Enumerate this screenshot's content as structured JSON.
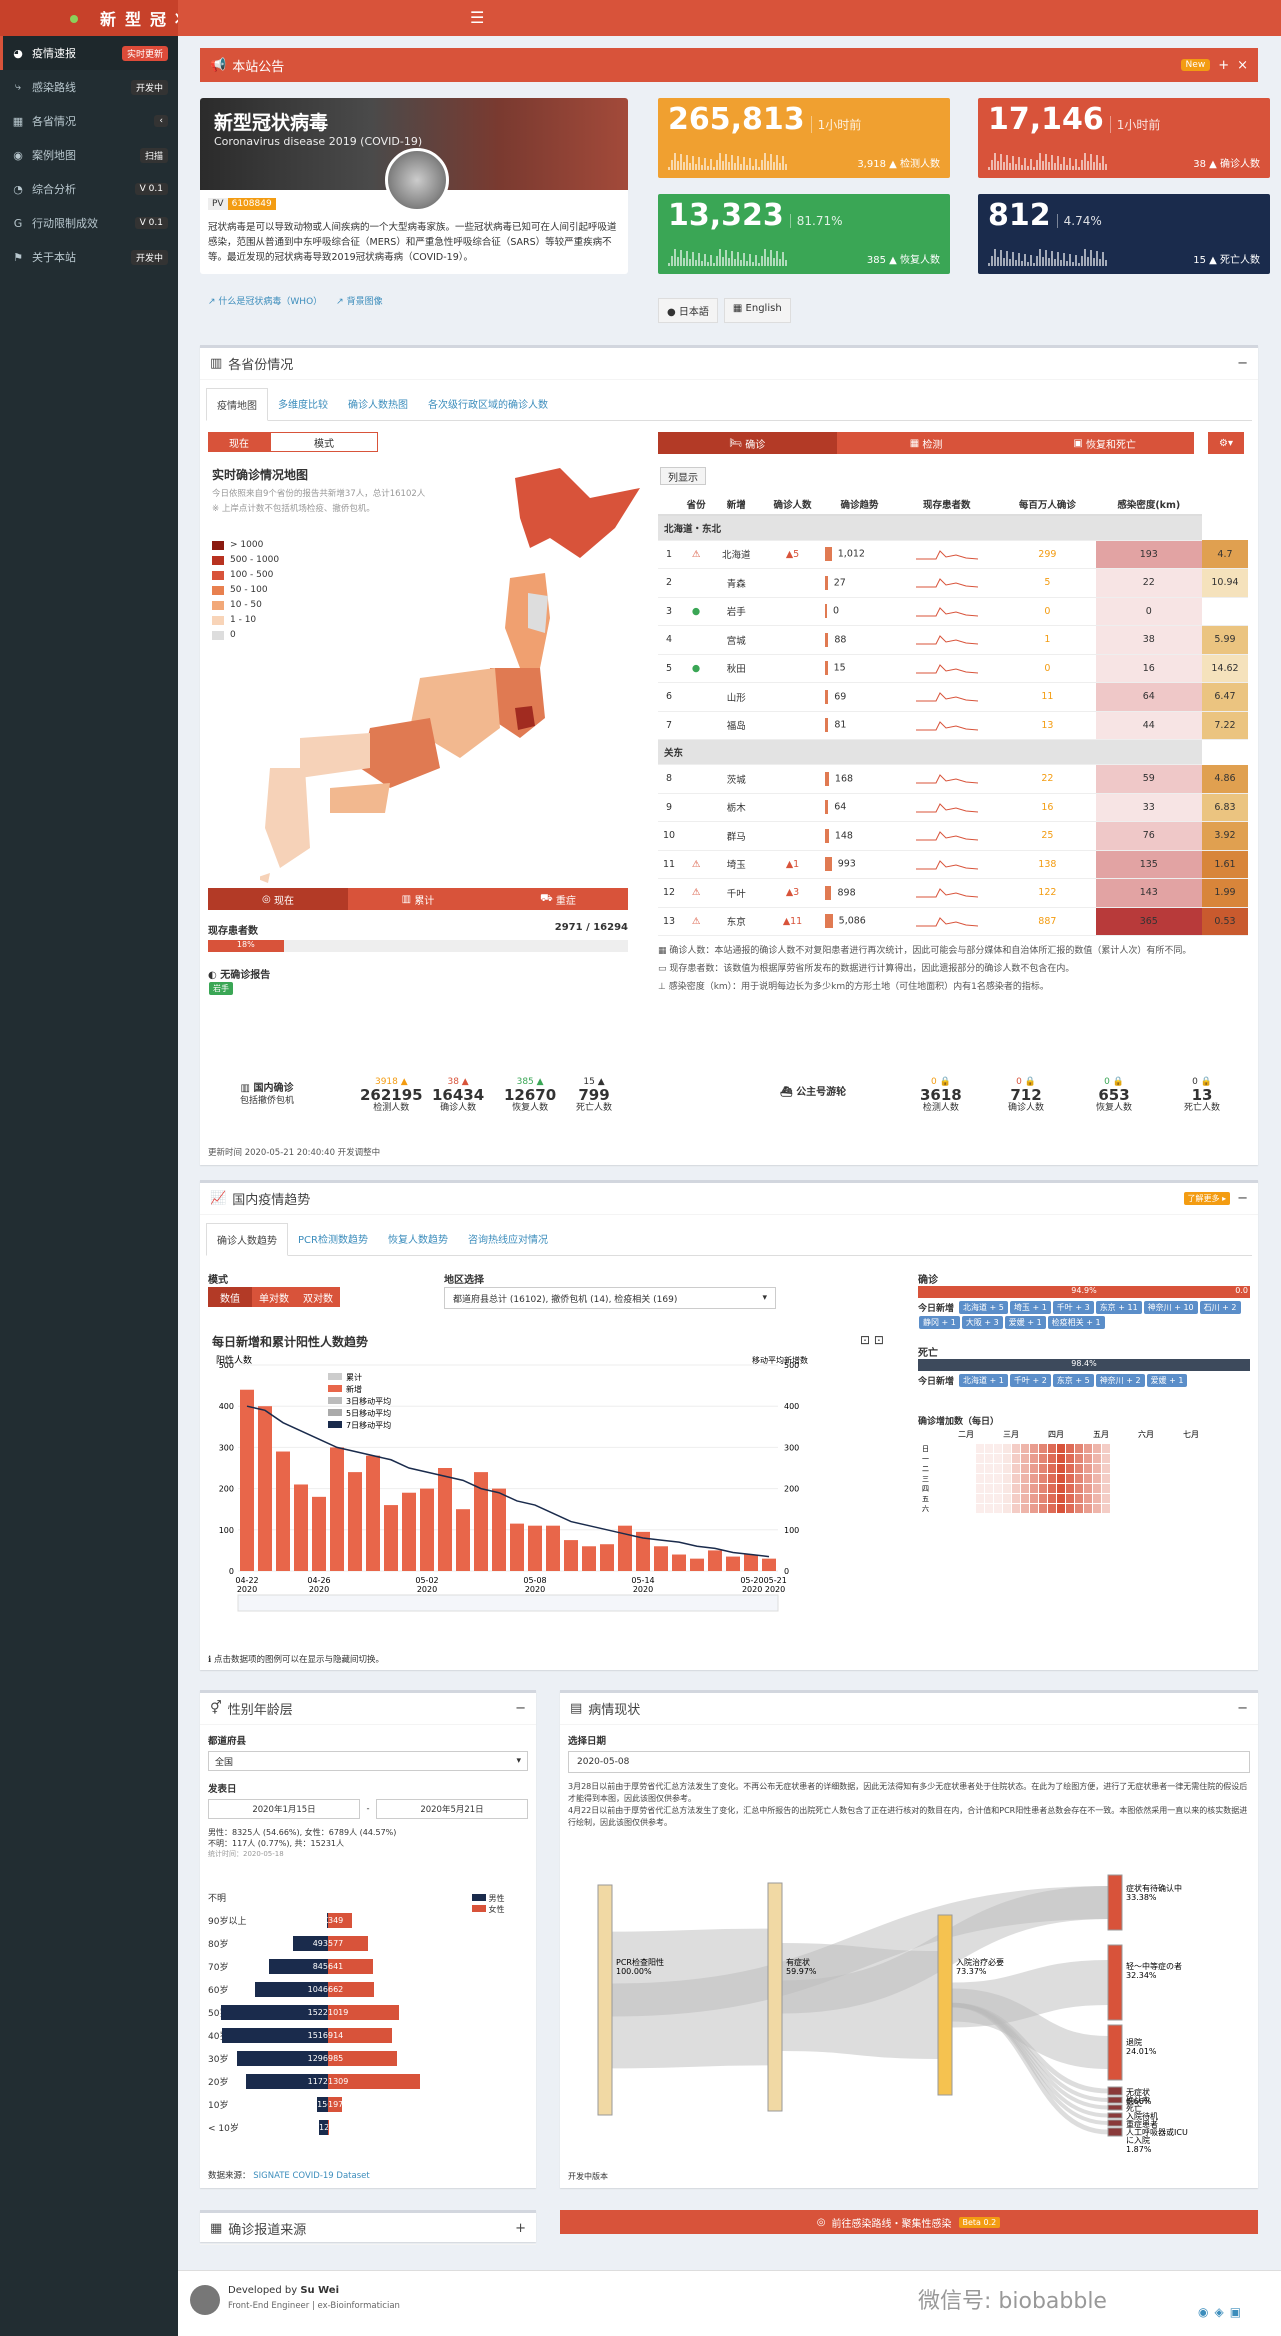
{
  "app": {
    "title": "新型冠状病毒疫情速报",
    "menu_icon": "hamburger-icon"
  },
  "sidebar": {
    "items": [
      {
        "label": "疫情速报",
        "badge": "实时更新",
        "icon": "dashboard-icon",
        "badge_color": "#dd4b39"
      },
      {
        "label": "感染路线",
        "badge": "开发中",
        "icon": "route-icon"
      },
      {
        "label": "各省情况",
        "badge": "‹",
        "icon": "map-icon"
      },
      {
        "label": "案例地图",
        "badge": "扫描",
        "icon": "location-icon"
      },
      {
        "label": "综合分析",
        "badge": "V 0.1",
        "icon": "chart-icon"
      },
      {
        "label": "行动限制成效",
        "badge": "V 0.1",
        "icon": "google-icon"
      },
      {
        "label": "关于本站",
        "badge": "开发中",
        "icon": "info-icon"
      }
    ]
  },
  "notice": {
    "title": "本站公告",
    "badge": "New"
  },
  "hero": {
    "title": "新型冠状病毒",
    "subtitle": "Coronavirus disease 2019 (COVID-19)",
    "pv_label": "PV",
    "pv_value": "6108849",
    "desc": "冠状病毒是可以导致动物或人间疾病的一个大型病毒家族。一些冠状病毒已知可在人间引起呼吸道感染，范围从普通到中东呼吸综合征（MERS）和严重急性呼吸综合征（SARS）等较严重疾病不等。最近发现的冠状病毒导致2019冠状病毒病（COVID-19）。",
    "link1": "什么是冠状病毒（WHO）",
    "link2": "背景图像"
  },
  "stats": [
    {
      "value": "265,813",
      "pct": "1小时前",
      "sub": "3,918 ▲ 检测人数",
      "color": "#f0a030"
    },
    {
      "value": "17,146",
      "pct": "1小时前",
      "sub": "38 ▲ 确诊人数",
      "color": "#d8533a"
    },
    {
      "value": "13,323",
      "pct": "81.71%",
      "sub": "385 ▲ 恢复人数",
      "color": "#3aa655"
    },
    {
      "value": "812",
      "pct": "4.74%",
      "sub": "15 ▲ 死亡人数",
      "color": "#1a2b4c"
    }
  ],
  "lang": {
    "ja": "日本語",
    "en": "English"
  },
  "province": {
    "title": "各省份情况",
    "tabs": [
      "疫情地图",
      "多维度比较",
      "确诊人数热图",
      "各次级行政区域的确诊人数"
    ],
    "mode_btns": [
      "现在",
      "模式"
    ],
    "map_title": "实时确诊情况地图",
    "map_sub1": "今日依照来自9个省份的报告共新增37人，总计16102人",
    "map_sub2": "※ 上岸点计数不包括机场检疫、撤侨包机。",
    "legend": [
      "> 1000",
      "500 - 1000",
      "100 - 500",
      "50 - 100",
      "10 - 50",
      "1 - 10",
      "0"
    ],
    "map_tabs": [
      "现在",
      "累计",
      "重症"
    ],
    "current_label": "现存患者数",
    "current_value": "2971 / 16294",
    "current_pct": "18%",
    "no_report_label": "无确诊报告",
    "no_report_badge": "岩手",
    "table_tabs": [
      "确诊",
      "检测",
      "恢复和死亡"
    ],
    "toggle": "列显示",
    "headers": [
      "省份",
      "新增",
      "确诊人数",
      "确诊趋势",
      "现存患者数",
      "每百万人确诊",
      "感染密度(km)"
    ],
    "groups": [
      "北海道・东北",
      "关东"
    ],
    "rows": [
      {
        "no": "1",
        "name": "北海道",
        "new": "5",
        "conf": "1,012",
        "cur": "299",
        "pm": "193",
        "den": "4.7"
      },
      {
        "no": "2",
        "name": "青森",
        "new": "",
        "conf": "27",
        "cur": "5",
        "pm": "22",
        "den": "10.94"
      },
      {
        "no": "3",
        "name": "岩手",
        "new": "",
        "conf": "0",
        "cur": "0",
        "pm": "0",
        "den": ""
      },
      {
        "no": "4",
        "name": "宫城",
        "new": "",
        "conf": "88",
        "cur": "1",
        "pm": "38",
        "den": "5.99"
      },
      {
        "no": "5",
        "name": "秋田",
        "new": "",
        "conf": "15",
        "cur": "0",
        "pm": "16",
        "den": "14.62"
      },
      {
        "no": "6",
        "name": "山形",
        "new": "",
        "conf": "69",
        "cur": "11",
        "pm": "64",
        "den": "6.47"
      },
      {
        "no": "7",
        "name": "福岛",
        "new": "",
        "conf": "81",
        "cur": "13",
        "pm": "44",
        "den": "7.22"
      },
      {
        "no": "8",
        "name": "茨城",
        "new": "",
        "conf": "168",
        "cur": "22",
        "pm": "59",
        "den": "4.86"
      },
      {
        "no": "9",
        "name": "栃木",
        "new": "",
        "conf": "64",
        "cur": "16",
        "pm": "33",
        "den": "6.83"
      },
      {
        "no": "10",
        "name": "群马",
        "new": "",
        "conf": "148",
        "cur": "25",
        "pm": "76",
        "den": "3.92"
      },
      {
        "no": "11",
        "name": "埼玉",
        "new": "1",
        "conf": "993",
        "cur": "138",
        "pm": "135",
        "den": "1.61"
      },
      {
        "no": "12",
        "name": "千叶",
        "new": "3",
        "conf": "898",
        "cur": "122",
        "pm": "143",
        "den": "1.99"
      },
      {
        "no": "13",
        "name": "东京",
        "new": "11",
        "conf": "5,086",
        "cur": "887",
        "pm": "365",
        "den": "0.53"
      }
    ],
    "note1": "确诊人数：本站通报的确诊人数不对复阳患者进行再次统计，因此可能会与部分媒体和自治体所汇报的数值（累计人次）有所不同。",
    "note2": "现存患者数：该数值为根据厚劳省所发布的数据进行计算得出，因此遗报部分的确诊人数不包含在内。",
    "note3": "感染密度（km）：用于说明每边长为多少km的方形土地（可住地面积）内有1名感染者的指标。",
    "dom_label": "国内确诊",
    "dom_sub": "包括撤侨包机",
    "dom": [
      {
        "d": "3918 ▲",
        "v": "262195",
        "l": "检测人数"
      },
      {
        "d": "38 ▲",
        "v": "16434",
        "l": "确诊人数"
      },
      {
        "d": "385 ▲",
        "v": "12670",
        "l": "恢复人数"
      },
      {
        "d": "15 ▲",
        "v": "799",
        "l": "死亡人数"
      }
    ],
    "ship_label": "公主号游轮",
    "ship": [
      {
        "d": "0",
        "v": "3618",
        "l": "检测人数"
      },
      {
        "d": "0",
        "v": "712",
        "l": "确诊人数"
      },
      {
        "d": "0",
        "v": "653",
        "l": "恢复人数"
      },
      {
        "d": "0",
        "v": "13",
        "l": "死亡人数"
      }
    ],
    "updated": "更新时间 2020-05-21 20:40:40 开发调整中"
  },
  "trend": {
    "title": "国内疫情趋势",
    "badge": "了解更多 ▸",
    "tabs": [
      "确诊人数趋势",
      "PCR检测数趋势",
      "恢复人数趋势",
      "咨询热线应对情况"
    ],
    "mode_label": "模式",
    "modes": [
      "数值",
      "单对数",
      "双对数"
    ],
    "region_label": "地区选择",
    "region_value": "都道府县总计 (16102), 撤侨包机 (14), 检疫相关 (169)",
    "chart_title": "每日新增和累计阳性人数趋势",
    "hint": "点击数据项的图例可以在显示与隐藏间切换。",
    "confirm_label": "确诊",
    "confirm_pct": "94.9%",
    "confirm_end": "0.0",
    "today_new": "今日新增",
    "confirm_tags": [
      "北海道 + 5",
      "埼玉 + 1",
      "千叶 + 3",
      "东京 + 11",
      "神奈川 + 10",
      "石川 + 2",
      "静冈 + 1",
      "大阪 + 3",
      "爱媛 + 1",
      "检疫相关 + 1"
    ],
    "death_label": "死亡",
    "death_pct": "98.4%",
    "death_tags": [
      "北海道 + 1",
      "千叶 + 2",
      "东京 + 5",
      "神奈川 + 2",
      "爱媛 + 1"
    ],
    "heat_title": "确诊增加数（每日）",
    "heat_months": [
      "二月",
      "三月",
      "四月",
      "五月",
      "六月",
      "七月"
    ],
    "heat_days": [
      "日",
      "一",
      "二",
      "三",
      "四",
      "五",
      "六"
    ]
  },
  "chart_data": {
    "type": "bar",
    "title": "每日新增和累计阳性人数趋势",
    "ylabel": "阳性人数",
    "y2label": "移动平均新增数",
    "x": [
      "04-22",
      "04-23",
      "04-24",
      "04-25",
      "04-26",
      "04-27",
      "04-28",
      "04-29",
      "04-30",
      "05-01",
      "05-02",
      "05-03",
      "05-04",
      "05-05",
      "05-06",
      "05-07",
      "05-08",
      "05-09",
      "05-10",
      "05-11",
      "05-12",
      "05-13",
      "05-14",
      "05-15",
      "05-16",
      "05-17",
      "05-18",
      "05-19",
      "05-20",
      "05-21"
    ],
    "xticks": [
      "04-22\n2020",
      "04-26\n2020",
      "05-02\n2020",
      "05-08\n2020",
      "05-14\n2020",
      "05-2005-21\n2020 2020"
    ],
    "legend": [
      "累计",
      "新增",
      "3日移动平均",
      "5日移动平均",
      "7日移动平均"
    ],
    "ylim": [
      0,
      500
    ],
    "y2lim": [
      0,
      500
    ],
    "new": [
      440,
      400,
      290,
      210,
      180,
      300,
      240,
      280,
      160,
      190,
      200,
      250,
      150,
      240,
      200,
      115,
      110,
      110,
      75,
      60,
      65,
      110,
      95,
      60,
      40,
      30,
      50,
      35,
      40,
      30
    ],
    "ma7": [
      400,
      390,
      360,
      340,
      320,
      300,
      290,
      280,
      270,
      250,
      240,
      230,
      220,
      200,
      190,
      170,
      160,
      140,
      120,
      110,
      100,
      90,
      80,
      75,
      70,
      60,
      55,
      45,
      40,
      35
    ]
  },
  "gender": {
    "title": "性别年龄层",
    "pref_label": "都道府县",
    "pref_value": "全国",
    "date_label": "发表日",
    "date_from": "2020年1月15日",
    "date_sep": "-",
    "date_to": "2020年5月21日",
    "summary": "男性：8325人 (54.66%), 女性：6789人 (44.57%)",
    "summary2": "不明：117人 (0.77%), 共：15231人",
    "as_of": "统计时间：2020-05-18",
    "legend": [
      "男性",
      "女性"
    ],
    "ages": [
      {
        "a": "不明",
        "m": "",
        "f": ""
      },
      {
        "a": "90岁以上",
        "m": "20",
        "f": "349"
      },
      {
        "a": "80岁",
        "m": "493",
        "f": "577"
      },
      {
        "a": "70岁",
        "m": "845",
        "f": "641"
      },
      {
        "a": "60岁",
        "m": "1046",
        "f": "662"
      },
      {
        "a": "50岁",
        "m": "1522",
        "f": "1019"
      },
      {
        "a": "40岁",
        "m": "1516",
        "f": "914"
      },
      {
        "a": "30岁",
        "m": "1296",
        "f": "985"
      },
      {
        "a": "20岁",
        "m": "1172",
        "f": "1309"
      },
      {
        "a": "10岁",
        "m": "156",
        "f": "197"
      },
      {
        "a": "< 10岁",
        "m": "128",
        "f": "14"
      }
    ],
    "source_label": "数据来源：",
    "source": "SIGNATE COVID-19 Dataset"
  },
  "status": {
    "title": "病情现状",
    "date_label": "选择日期",
    "date_value": "2020-05-08",
    "desc1": "3月28日以前由于厚劳省代汇总方法发生了变化。不再公布无症状患者的详细数据，因此无法得知有多少无症状患者处于住院状态。在此为了绘图方便，进行了无症状患者一律无需住院的假设后才能得到本图，因此该图仅供参考。",
    "desc2": "4月22日以前由于厚劳省代汇总方法发生了变化，汇总中所报告的出院死亡人数包含了正在进行核对的数目在内，合计值和PCR阳性患者总数会存在不一致。本图依然采用一直以来的核实数据进行绘制，因此该图仅供参考。",
    "nodes": [
      {
        "l": "PCR检查阳性",
        "v": "100.00%"
      },
      {
        "l": "有症状",
        "v": "59.97%"
      },
      {
        "l": "入院治疗必要",
        "v": "73.37%"
      },
      {
        "l": "症状有待确认中",
        "v": "33.38%"
      },
      {
        "l": "轻～中等症の者",
        "v": "32.34%"
      },
      {
        "l": "退院",
        "v": "24.01%"
      },
      {
        "l": "无症状",
        "v": "6.66%"
      },
      {
        "l": "确认中",
        "v": ""
      },
      {
        "l": "死亡",
        "v": ""
      },
      {
        "l": "入院待机",
        "v": ""
      },
      {
        "l": "重症患者",
        "v": ""
      },
      {
        "l": "人工呼吸器或ICU",
        "v": ""
      },
      {
        "l": "に入院",
        "v": "1.87%"
      }
    ],
    "footer": "开发中版本"
  },
  "source": {
    "title": "确诊报道来源"
  },
  "route_btn": "前往感染路线・聚集性感染",
  "route_badge": "Beta 0.2",
  "footer": {
    "by": "Developed by",
    "name": "Su Wei",
    "role": "Front-End Engineer | ex-Bioinformatician",
    "watermark": "微信号: biobabble"
  }
}
